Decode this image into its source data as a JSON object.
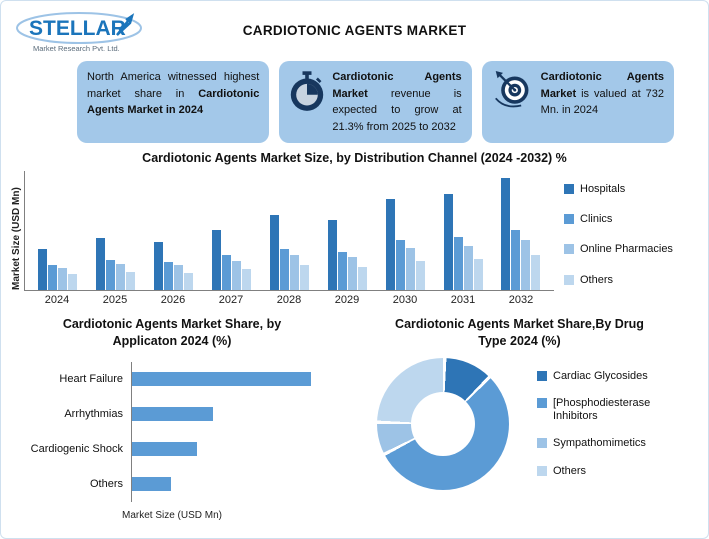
{
  "header": {
    "title": "CARDIOTONIC AGENTS MARKET",
    "logo": {
      "name": "STELLAR",
      "subtitle": "Market Research Pvt. Ltd."
    }
  },
  "highlights": [
    {
      "seg1": "North America witnessed highest market share in ",
      "seg2": "Cardiotonic Agents Market in 2024"
    },
    {
      "seg1": "Cardiotonic Agents Market",
      "seg2": " revenue is expected to grow at 21.3% from 2025 to 2032"
    },
    {
      "seg1": "Cardiotonic Agents Market",
      "seg2": " is valued at 732 Mn. in 2024"
    }
  ],
  "colors": {
    "series": [
      "#2e75b6",
      "#5b9bd5",
      "#9dc3e6",
      "#bdd7ee"
    ],
    "hbar": "#5b9bd5",
    "box_bg": "#a3c8e9",
    "accent_dark": "#17375e",
    "logo_blue": "#1b75bb"
  },
  "chart_data": [
    {
      "type": "bar",
      "title": "Cardiotonic Agents Market Size, by Distribution Channel (2024 -2032) %",
      "ylabel": "Market Size (USD Mn)",
      "xlabel": "",
      "categories": [
        "2024",
        "2025",
        "2026",
        "2027",
        "2028",
        "2029",
        "2030",
        "2031",
        "2032"
      ],
      "series": [
        {
          "name": "Hospitals",
          "values": [
            45,
            57,
            53,
            66,
            82,
            76,
            99,
            105,
            122
          ]
        },
        {
          "name": "Clinics",
          "values": [
            27,
            33,
            31,
            38,
            45,
            42,
            55,
            58,
            66
          ]
        },
        {
          "name": "Online Pharmacies",
          "values": [
            24,
            28,
            27,
            32,
            38,
            36,
            46,
            48,
            55
          ]
        },
        {
          "name": "Others",
          "values": [
            17,
            20,
            19,
            23,
            27,
            25,
            32,
            34,
            38
          ]
        }
      ],
      "ylim": [
        0,
        130
      ],
      "grid": false,
      "legend_position": "right"
    },
    {
      "type": "bar",
      "orientation": "horizontal",
      "title": "Cardiotonic Agents Market Share, by Applicaton 2024 (%)",
      "xlabel": "Market Size (USD Mn)",
      "ylabel": "",
      "categories": [
        "Heart Failure",
        "Arrhythmias",
        "Cardiogenic Shock",
        "Others"
      ],
      "values": [
        55,
        25,
        20,
        12
      ],
      "xlim": [
        0,
        60
      ],
      "grid": false
    },
    {
      "type": "pie",
      "subtype": "donut",
      "title": "Cardiotonic Agents  Market Share,By Drug Type 2024 (%)",
      "labels": [
        "Cardiac Glycosides",
        "[Phosphodiesterase Inhibitors",
        "Sympathomimetics",
        "Others"
      ],
      "values": [
        12,
        55,
        8,
        25
      ],
      "legend_position": "right"
    }
  ]
}
